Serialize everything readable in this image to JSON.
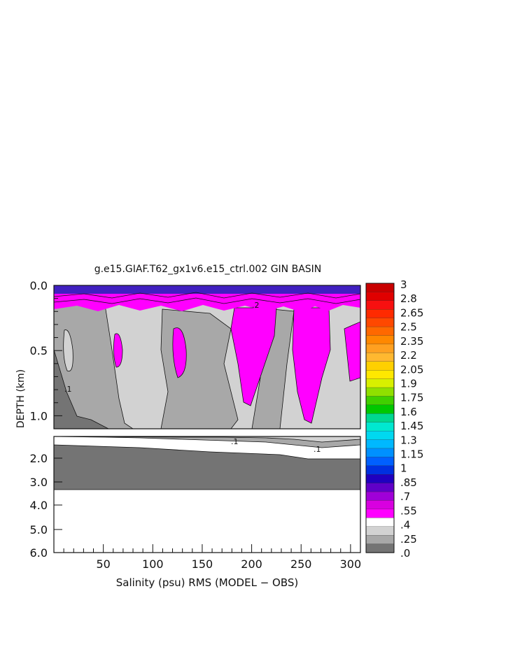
{
  "chart_data": {
    "type": "heatmap",
    "title": "g.e15.GIAF.T62_gx1v6.e15_ctrl.002 GIN BASIN",
    "xlabel": "Salinity (psu) RMS (MODEL − OBS)",
    "ylabel": "DEPTH (km)",
    "xlim": [
      0,
      310
    ],
    "x_ticks": [
      "50",
      "100",
      "150",
      "200",
      "250",
      "300"
    ],
    "upper_panel": {
      "ylim": [
        0.0,
        1.1
      ],
      "y_ticks": [
        "0.0",
        "0.5",
        "1.0"
      ]
    },
    "lower_panel": {
      "ylim": [
        1.2,
        6.0
      ],
      "y_ticks": [
        "2.0",
        "3.0",
        "4.0",
        "5.0",
        "6.0"
      ]
    },
    "contour_labels": [
      ".1",
      ".2",
      ".1",
      ".1"
    ],
    "colorbar": {
      "labels": [
        "3",
        "2.8",
        "2.65",
        "2.5",
        "2.35",
        "2.2",
        "2.05",
        "1.9",
        "1.75",
        "1.6",
        "1.45",
        "1.3",
        "1.15",
        "1",
        ".85",
        ".7",
        ".55",
        ".4",
        ".25",
        ".0"
      ],
      "colors": [
        "#c80000",
        "#e00000",
        "#f81010",
        "#ff2a00",
        "#ff4800",
        "#ff6800",
        "#ff8800",
        "#ffa020",
        "#ffb830",
        "#ffd000",
        "#ffe800",
        "#d8f000",
        "#90e000",
        "#40d000",
        "#00c800",
        "#00d890",
        "#00e8d0",
        "#00d8f0",
        "#00b8ff",
        "#0090ff",
        "#0060ff",
        "#0030e0",
        "#2000c0",
        "#6000c8",
        "#a000d8",
        "#d800e0",
        "#ff00ff",
        "#ffffff",
        "#d2d2d2",
        "#a8a8a8",
        "#747474"
      ]
    },
    "fill_colors": {
      "very_low": "#747474",
      "low": "#a8a8a8",
      "mid": "#d2d2d2",
      "high": "#ff00ff",
      "upper_band": "#b000d0"
    }
  }
}
